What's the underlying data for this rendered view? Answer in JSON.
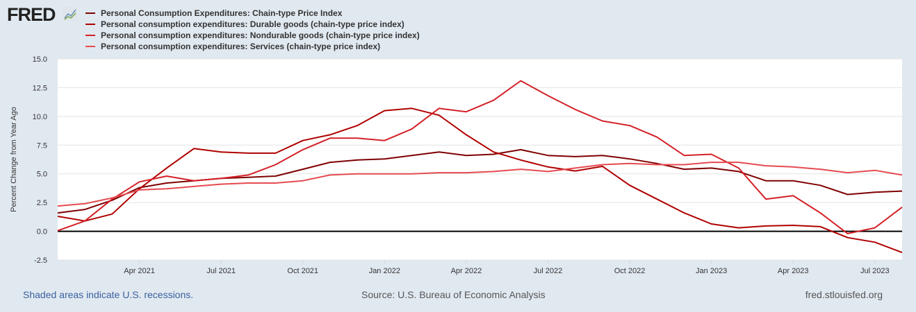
{
  "header": {
    "logo": "FRED"
  },
  "footer": {
    "recession_note": "Shaded areas indicate U.S. recessions.",
    "source": "Source: U.S. Bureau of Economic Analysis",
    "site": "fred.stlouisfed.org"
  },
  "chart_data": {
    "type": "line",
    "title": "",
    "xlabel": "",
    "ylabel": "Percent Change from Year Ago",
    "ylim": [
      -2.5,
      15.0
    ],
    "yticks": [
      "15.0",
      "12.5",
      "10.0",
      "7.5",
      "5.0",
      "2.5",
      "0.0",
      "-2.5"
    ],
    "ytick_values": [
      15,
      12.5,
      10,
      7.5,
      5,
      2.5,
      0,
      -2.5
    ],
    "xticks": [
      {
        "label": "Apr 2021",
        "index": 3
      },
      {
        "label": "Jul 2021",
        "index": 6
      },
      {
        "label": "Oct 2021",
        "index": 9
      },
      {
        "label": "Jan 2022",
        "index": 12
      },
      {
        "label": "Apr 2022",
        "index": 15
      },
      {
        "label": "Jul 2022",
        "index": 18
      },
      {
        "label": "Oct 2022",
        "index": 21
      },
      {
        "label": "Jan 2023",
        "index": 24
      },
      {
        "label": "Apr 2023",
        "index": 27
      },
      {
        "label": "Jul 2023",
        "index": 30
      }
    ],
    "x": [
      "2021-01",
      "2021-02",
      "2021-03",
      "2021-04",
      "2021-05",
      "2021-06",
      "2021-07",
      "2021-08",
      "2021-09",
      "2021-10",
      "2021-11",
      "2021-12",
      "2022-01",
      "2022-02",
      "2022-03",
      "2022-04",
      "2022-05",
      "2022-06",
      "2022-07",
      "2022-08",
      "2022-09",
      "2022-10",
      "2022-11",
      "2022-12",
      "2023-01",
      "2023-02",
      "2023-03",
      "2023-04",
      "2023-05",
      "2023-06",
      "2023-07",
      "2023-08"
    ],
    "grid": true,
    "legend": "top-left",
    "series": [
      {
        "name": "Personal Consumption Expenditures: Chain-type Price Index",
        "color": "#7f0000",
        "values": [
          1.6,
          1.9,
          2.7,
          3.8,
          4.2,
          4.4,
          4.6,
          4.7,
          4.8,
          5.4,
          6.0,
          6.2,
          6.3,
          6.6,
          6.9,
          6.6,
          6.7,
          7.1,
          6.6,
          6.5,
          6.6,
          6.3,
          5.9,
          5.4,
          5.5,
          5.2,
          4.4,
          4.4,
          4.0,
          3.2,
          3.4,
          3.5
        ]
      },
      {
        "name": "Personal consumption expenditures: Durable goods (chain-type price index)",
        "color": "#b00000",
        "values": [
          1.3,
          0.9,
          1.5,
          3.7,
          5.5,
          7.2,
          6.9,
          6.8,
          6.8,
          7.9,
          8.4,
          9.2,
          10.5,
          10.7,
          10.1,
          8.4,
          6.9,
          6.2,
          5.6,
          5.25,
          5.65,
          4.0,
          2.8,
          1.6,
          0.64,
          0.3,
          0.46,
          0.52,
          0.4,
          -0.55,
          -0.95,
          -1.85
        ]
      },
      {
        "name": "Personal consumption expenditures: Nondurable goods (chain-type price index)",
        "color": "#d42027",
        "values": [
          0.05,
          0.9,
          2.8,
          4.3,
          4.8,
          4.4,
          4.6,
          4.9,
          5.8,
          7.1,
          8.1,
          8.1,
          7.9,
          8.9,
          10.7,
          10.4,
          11.4,
          13.1,
          11.8,
          10.6,
          9.6,
          9.2,
          8.2,
          6.6,
          6.7,
          5.5,
          2.8,
          3.1,
          1.6,
          -0.2,
          0.3,
          2.1
        ]
      },
      {
        "name": "Personal consumption expenditures: Services (chain-type price index)",
        "color": "#e54a50",
        "values": [
          2.2,
          2.4,
          2.9,
          3.6,
          3.7,
          3.9,
          4.1,
          4.2,
          4.2,
          4.4,
          4.9,
          5.0,
          5.0,
          5.0,
          5.1,
          5.1,
          5.2,
          5.4,
          5.2,
          5.5,
          5.8,
          5.9,
          5.8,
          5.8,
          6.0,
          6.0,
          5.7,
          5.6,
          5.4,
          5.1,
          5.3,
          4.9
        ]
      }
    ]
  }
}
